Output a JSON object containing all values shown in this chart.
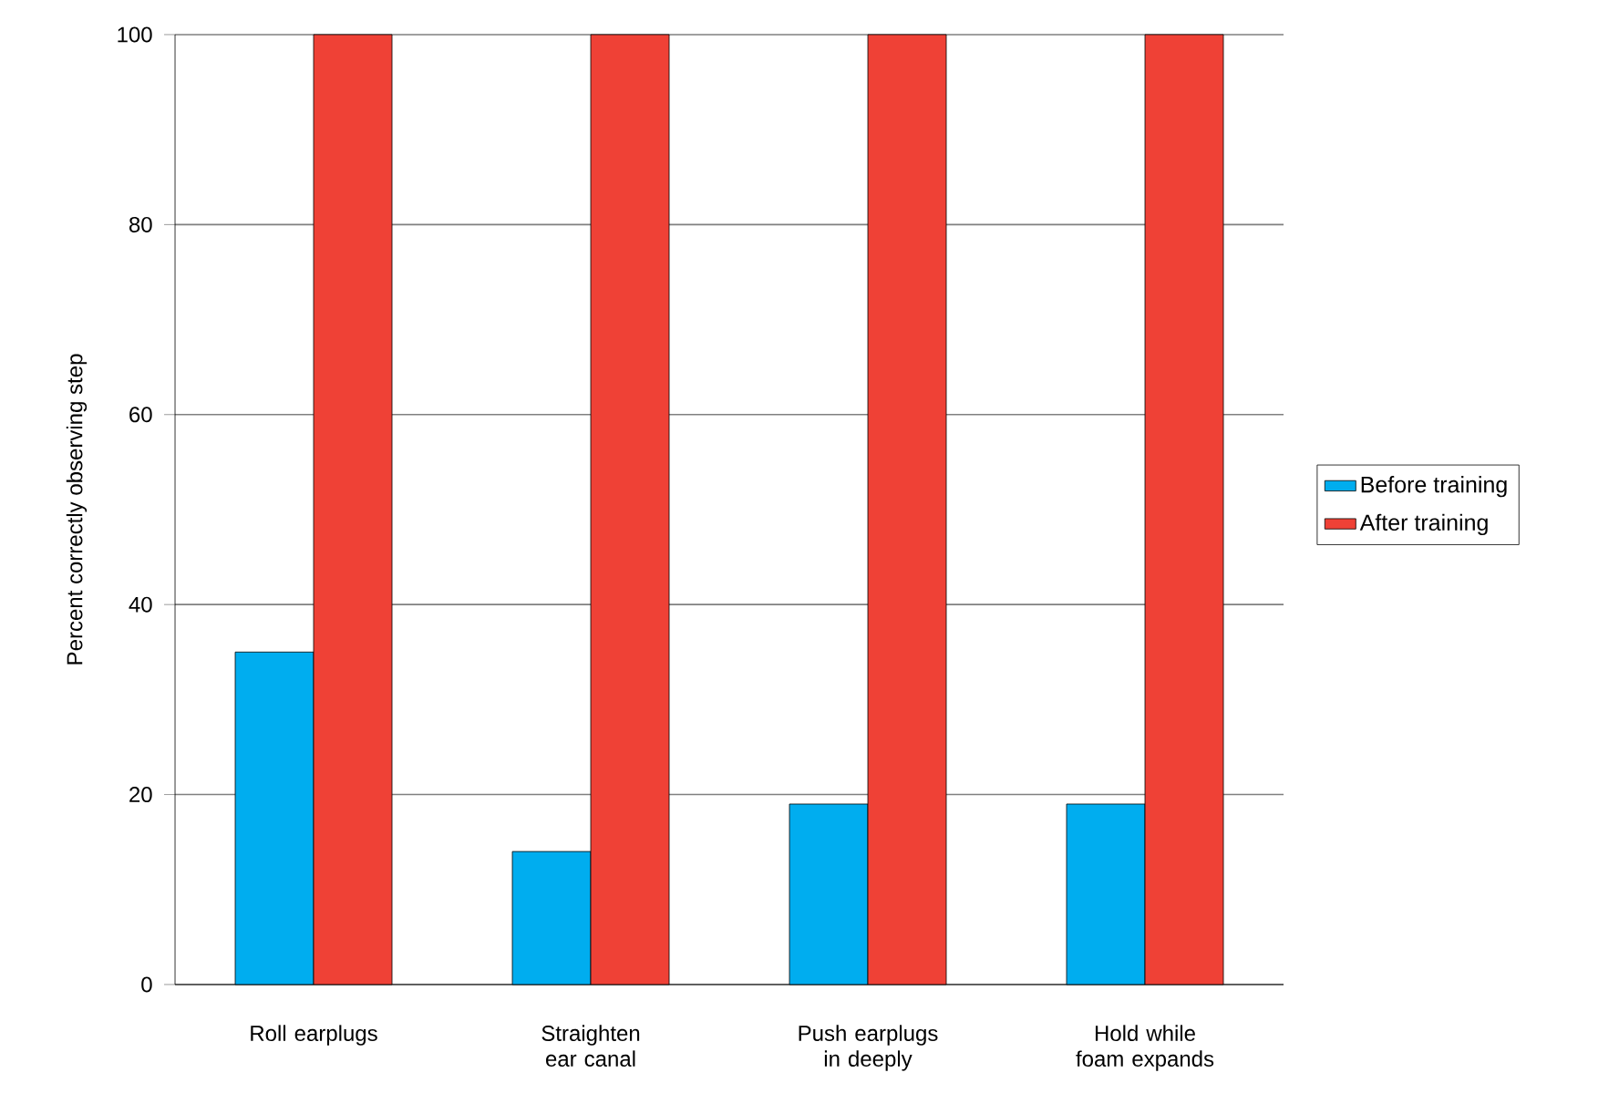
{
  "chart_data": {
    "type": "bar",
    "ylabel": "Percent correctly observing step",
    "categories": [
      "Roll earplugs",
      "Straighten ear canal",
      "Push earplugs in deeply",
      "Hold while foam expands"
    ],
    "series": [
      {
        "name": "Before training",
        "color": "#00adef",
        "values": [
          35,
          14,
          19,
          19
        ]
      },
      {
        "name": "After training",
        "color": "#ef4136",
        "values": [
          100,
          100,
          100,
          100
        ]
      }
    ],
    "ylim": [
      0,
      100
    ],
    "yticks": [
      0,
      20,
      40,
      60,
      80,
      100
    ],
    "grid": "y",
    "legend": "right"
  }
}
